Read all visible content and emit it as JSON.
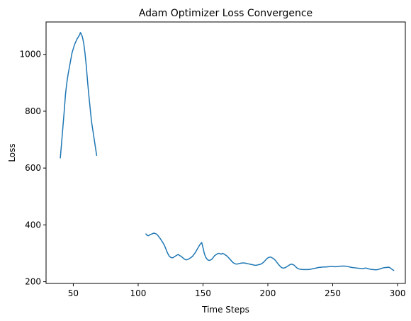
{
  "chart_data": {
    "type": "line",
    "title": "Adam Optimizer Loss Convergence",
    "xlabel": "Time Steps",
    "ylabel": "Loss",
    "xlim": [
      29,
      306
    ],
    "ylim": [
      194,
      1114
    ],
    "xticks": [
      50,
      100,
      150,
      200,
      250,
      300
    ],
    "yticks": [
      200,
      400,
      600,
      800,
      1000
    ],
    "grid": false,
    "legend": "none",
    "colors": {
      "line": "#1f77b4",
      "axes": "#000000",
      "background": "#ffffff"
    },
    "series": [
      {
        "segments": [
          [
            [
              40,
              636
            ],
            [
              41,
              690
            ],
            [
              42,
              745
            ],
            [
              43,
              800
            ],
            [
              44,
              860
            ],
            [
              45,
              900
            ],
            [
              46,
              930
            ],
            [
              47,
              955
            ],
            [
              48,
              980
            ],
            [
              49,
              1005
            ],
            [
              50,
              1020
            ],
            [
              51,
              1035
            ],
            [
              52,
              1045
            ],
            [
              53,
              1055
            ],
            [
              54,
              1062
            ],
            [
              55,
              1070
            ],
            [
              55.5,
              1077
            ],
            [
              56,
              1072
            ],
            [
              57,
              1062
            ],
            [
              58,
              1040
            ],
            [
              59,
              1005
            ],
            [
              60,
              960
            ],
            [
              61,
              905
            ],
            [
              62,
              855
            ],
            [
              63,
              810
            ],
            [
              64,
              765
            ],
            [
              65,
              735
            ],
            [
              66,
              705
            ],
            [
              67,
              675
            ],
            [
              68,
              645
            ]
          ],
          [
            [
              106,
              368
            ],
            [
              107,
              363
            ],
            [
              108,
              362
            ],
            [
              109,
              365
            ],
            [
              110,
              367
            ],
            [
              111,
              369
            ],
            [
              112,
              371
            ],
            [
              113,
              370
            ],
            [
              114,
              368
            ],
            [
              115,
              364
            ],
            [
              116,
              358
            ],
            [
              117,
              352
            ],
            [
              118,
              345
            ],
            [
              119,
              338
            ],
            [
              120,
              330
            ],
            [
              121,
              320
            ],
            [
              122,
              308
            ],
            [
              123,
              298
            ],
            [
              124,
              290
            ],
            [
              125,
              286
            ],
            [
              126,
              284
            ],
            [
              127,
              285
            ],
            [
              128,
              288
            ],
            [
              129,
              291
            ],
            [
              130,
              294
            ],
            [
              131,
              296
            ],
            [
              132,
              292
            ],
            [
              133,
              290
            ],
            [
              134,
              286
            ],
            [
              135,
              282
            ],
            [
              136,
              279
            ],
            [
              137,
              277
            ],
            [
              138,
              278
            ],
            [
              139,
              280
            ],
            [
              140,
              283
            ],
            [
              141,
              286
            ],
            [
              142,
              290
            ],
            [
              143,
              296
            ],
            [
              144,
              302
            ],
            [
              145,
              310
            ],
            [
              146,
              318
            ],
            [
              147,
              326
            ],
            [
              148,
              333
            ],
            [
              149,
              338
            ],
            [
              150,
              320
            ],
            [
              151,
              300
            ],
            [
              152,
              287
            ],
            [
              153,
              280
            ],
            [
              154,
              276
            ],
            [
              155,
              275
            ],
            [
              156,
              277
            ],
            [
              157,
              280
            ],
            [
              158,
              286
            ],
            [
              159,
              292
            ],
            [
              160,
              295
            ],
            [
              161,
              298
            ],
            [
              162,
              300
            ],
            [
              163,
              299
            ],
            [
              164,
              297
            ],
            [
              165,
              300
            ],
            [
              166,
              298
            ],
            [
              167,
              295
            ],
            [
              168,
              292
            ],
            [
              169,
              288
            ],
            [
              170,
              283
            ],
            [
              171,
              278
            ],
            [
              172,
              273
            ],
            [
              173,
              268
            ],
            [
              174,
              265
            ],
            [
              175,
              263
            ],
            [
              176,
              262
            ],
            [
              177,
              263
            ],
            [
              178,
              264
            ],
            [
              179,
              265
            ],
            [
              180,
              266
            ],
            [
              181,
              266
            ],
            [
              182,
              266
            ],
            [
              183,
              265
            ],
            [
              184,
              264
            ],
            [
              185,
              263
            ],
            [
              186,
              262
            ],
            [
              187,
              261
            ],
            [
              188,
              260
            ],
            [
              189,
              259
            ],
            [
              190,
              258
            ],
            [
              191,
              258
            ],
            [
              192,
              259
            ],
            [
              193,
              260
            ],
            [
              194,
              261
            ],
            [
              195,
              263
            ],
            [
              196,
              266
            ],
            [
              197,
              270
            ],
            [
              198,
              275
            ],
            [
              199,
              280
            ],
            [
              200,
              284
            ],
            [
              201,
              286
            ],
            [
              202,
              287
            ],
            [
              203,
              285
            ],
            [
              204,
              282
            ],
            [
              205,
              279
            ],
            [
              206,
              274
            ],
            [
              207,
              268
            ],
            [
              208,
              262
            ],
            [
              209,
              257
            ],
            [
              210,
              252
            ],
            [
              211,
              249
            ],
            [
              212,
              248
            ],
            [
              213,
              249
            ],
            [
              214,
              251
            ],
            [
              215,
              254
            ],
            [
              216,
              257
            ],
            [
              217,
              260
            ],
            [
              218,
              262
            ],
            [
              219,
              261
            ],
            [
              220,
              259
            ],
            [
              221,
              255
            ],
            [
              222,
              250
            ],
            [
              223,
              247
            ],
            [
              224,
              245
            ],
            [
              225,
              244
            ],
            [
              227,
              243
            ],
            [
              229,
              243
            ],
            [
              231,
              243
            ],
            [
              233,
              244
            ],
            [
              235,
              246
            ],
            [
              237,
              248
            ],
            [
              239,
              250
            ],
            [
              241,
              251
            ],
            [
              243,
              252
            ],
            [
              245,
              252
            ],
            [
              247,
              253
            ],
            [
              249,
              254
            ],
            [
              251,
              253
            ],
            [
              253,
              253
            ],
            [
              255,
              254
            ],
            [
              257,
              255
            ],
            [
              259,
              255
            ],
            [
              261,
              254
            ],
            [
              263,
              252
            ],
            [
              265,
              250
            ],
            [
              267,
              249
            ],
            [
              269,
              248
            ],
            [
              271,
              247
            ],
            [
              273,
              246
            ],
            [
              275,
              248
            ],
            [
              276,
              248
            ],
            [
              277,
              246
            ],
            [
              279,
              244
            ],
            [
              281,
              243
            ],
            [
              283,
              242
            ],
            [
              285,
              243
            ],
            [
              287,
              246
            ],
            [
              289,
              249
            ],
            [
              291,
              250
            ],
            [
              293,
              251
            ],
            [
              294,
              250
            ],
            [
              295,
              246
            ],
            [
              296,
              243
            ],
            [
              297,
              240
            ]
          ]
        ]
      }
    ]
  }
}
